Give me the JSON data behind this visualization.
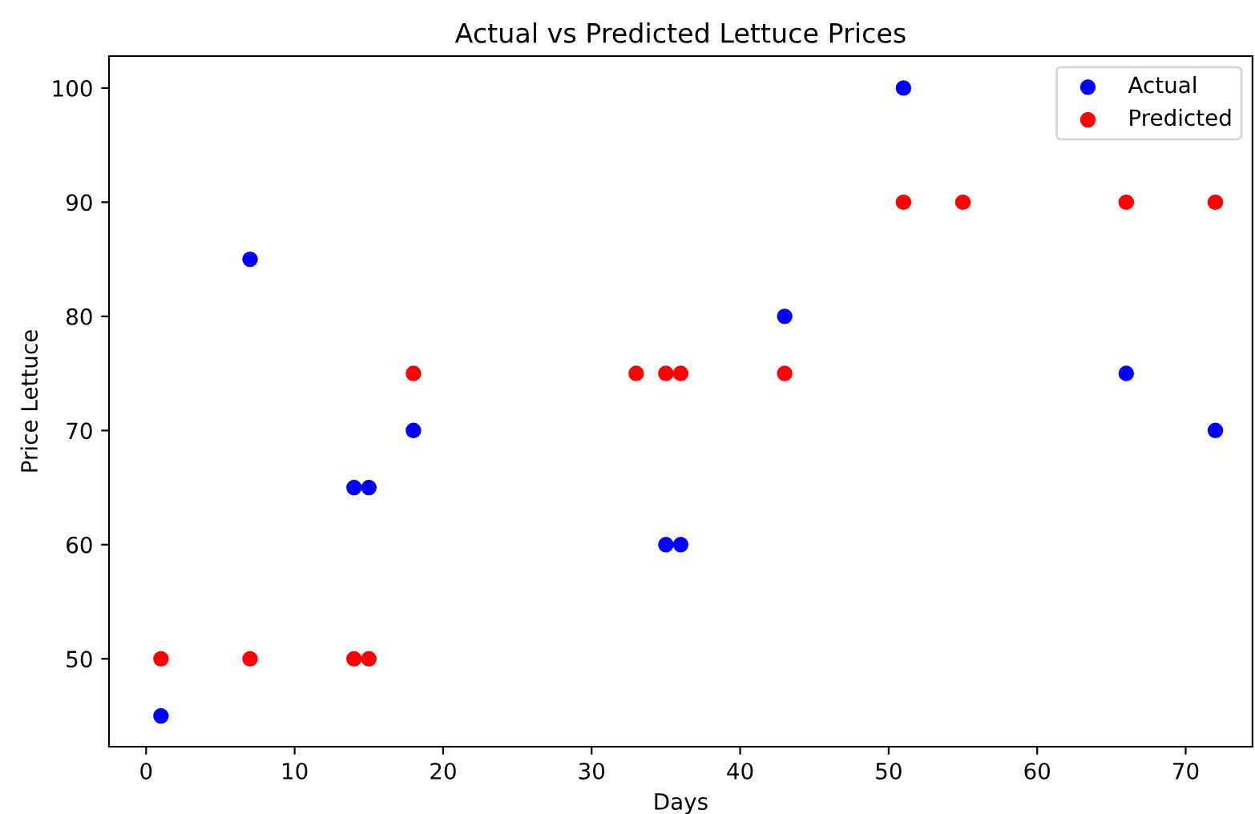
{
  "chart_data": {
    "type": "scatter",
    "title": "Actual vs Predicted Lettuce Prices",
    "xlabel": "Days",
    "ylabel": "Price Lettuce",
    "series": [
      {
        "name": "Actual",
        "color": "#0000ff",
        "x": [
          1,
          7,
          14,
          15,
          18,
          35,
          36,
          43,
          51,
          66,
          72
        ],
        "values": [
          45,
          85,
          65,
          65,
          70,
          60,
          60,
          80,
          100,
          75,
          70
        ]
      },
      {
        "name": "Predicted",
        "color": "#ff0000",
        "x": [
          1,
          7,
          14,
          15,
          18,
          33,
          35,
          36,
          43,
          51,
          55,
          66,
          72
        ],
        "values": [
          50,
          50,
          50,
          50,
          75,
          75,
          75,
          75,
          75,
          90,
          90,
          90,
          90
        ]
      }
    ],
    "xlim": [
      -2.5,
      74.5
    ],
    "ylim": [
      42.3,
      102.8
    ],
    "xticks": [
      0,
      10,
      20,
      30,
      40,
      50,
      60,
      70
    ],
    "yticks": [
      50,
      60,
      70,
      80,
      90,
      100
    ],
    "marker": "circle",
    "grid": false,
    "legend": "top right"
  }
}
